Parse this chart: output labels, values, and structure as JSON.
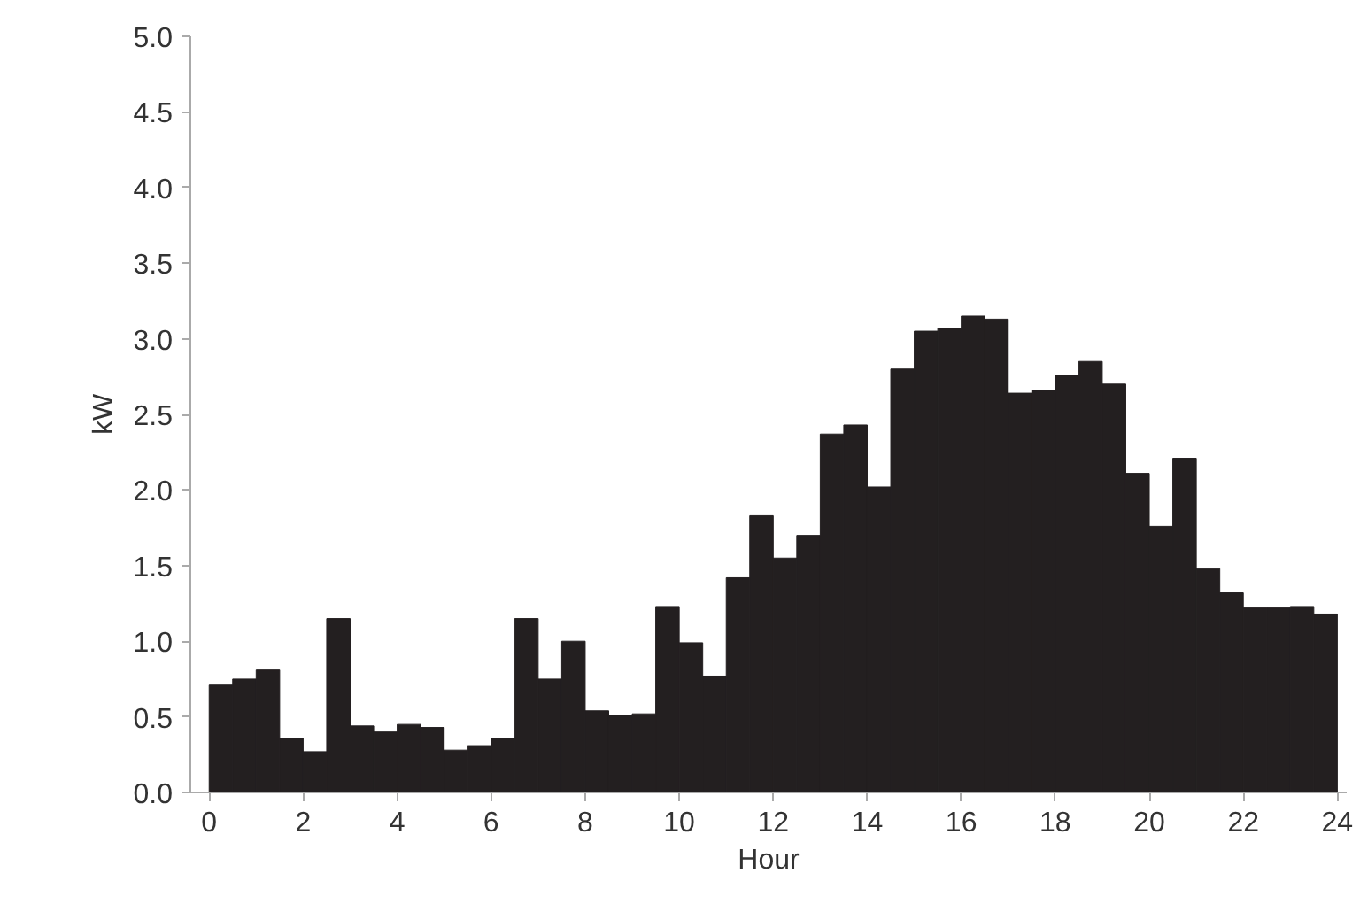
{
  "chart_data": {
    "type": "histogram",
    "xlabel": "Hour",
    "ylabel": "kW",
    "color": "#231f20",
    "bins": [
      0,
      0.5,
      1,
      1.5,
      2,
      2.5,
      3,
      3.5,
      4,
      4.5,
      5,
      5.5,
      6,
      6.5,
      7,
      7.5,
      8,
      8.5,
      9,
      9.5,
      10,
      10.5,
      11,
      11.5,
      12,
      12.5,
      13,
      13.5,
      14,
      14.5,
      15,
      15.5,
      16,
      16.5,
      17,
      17.5,
      18,
      18.5,
      19,
      19.5,
      20,
      20.5,
      21,
      21.5,
      22,
      22.5,
      23,
      23.5,
      24
    ],
    "values": [
      0.71,
      0.75,
      0.81,
      0.36,
      0.27,
      1.15,
      0.44,
      0.4,
      0.45,
      0.43,
      0.28,
      0.31,
      0.36,
      1.15,
      0.75,
      1.0,
      0.54,
      0.51,
      0.52,
      1.23,
      0.99,
      0.77,
      1.42,
      1.83,
      1.55,
      1.7,
      2.37,
      2.43,
      2.02,
      2.8,
      3.05,
      3.07,
      3.15,
      3.13,
      2.64,
      2.66,
      2.76,
      2.85,
      2.7,
      2.11,
      1.76,
      2.21,
      1.48,
      1.32,
      1.22,
      1.22,
      1.23,
      1.18
    ],
    "xlim": [
      -0.4,
      24.2
    ],
    "ylim": [
      0,
      5
    ],
    "xticks": [
      0,
      2,
      4,
      6,
      8,
      10,
      12,
      14,
      16,
      18,
      20,
      22,
      24
    ],
    "yticks": [
      {
        "value": 0,
        "label": "0.0"
      },
      {
        "value": 0.5,
        "label": "0.5"
      },
      {
        "value": 1,
        "label": "1.0"
      },
      {
        "value": 1.5,
        "label": "1.5"
      },
      {
        "value": 2,
        "label": "2.0"
      },
      {
        "value": 2.5,
        "label": "2.5"
      },
      {
        "value": 3,
        "label": "3.0"
      },
      {
        "value": 3.5,
        "label": "3.5"
      },
      {
        "value": 4,
        "label": "4.0"
      },
      {
        "value": 4.5,
        "label": "4.5"
      },
      {
        "value": 5,
        "label": "5.0"
      }
    ],
    "grid": false
  }
}
